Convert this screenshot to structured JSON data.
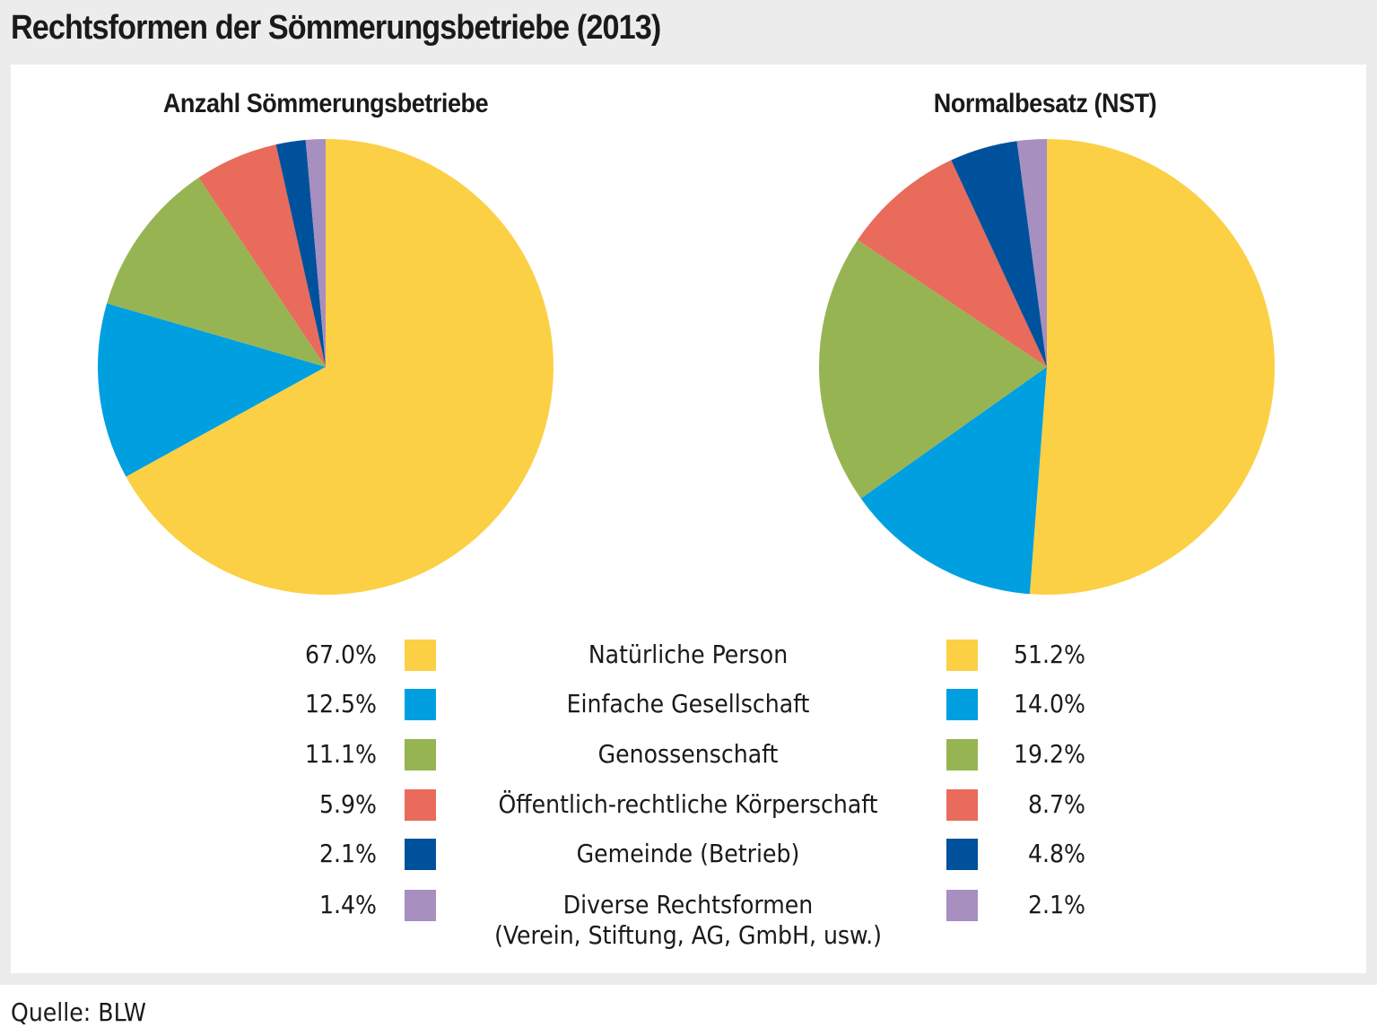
{
  "title": "Rechtsformen der Sömmerungsbetriebe (2013)",
  "source": "Quelle: BLW",
  "chart_data": [
    {
      "type": "pie",
      "title": "Anzahl Sömmerungsbetriebe",
      "categories": [
        "Natürliche Person",
        "Einfache Gesellschaft",
        "Genossenschaft",
        "Öffentlich-rechtliche Körperschaft",
        "Gemeinde (Betrieb)",
        "Diverse Rechtsformen (Verein, Stiftung, AG, GmbH, usw.)"
      ],
      "values": [
        67.0,
        12.5,
        11.1,
        5.9,
        2.1,
        1.4
      ],
      "labels": [
        "67.0%",
        "12.5%",
        "11.1%",
        "5.9%",
        "2.1%",
        "1.4%"
      ],
      "start": "12 o'clock",
      "direction": "clockwise"
    },
    {
      "type": "pie",
      "title": "Normalbesatz (NST)",
      "categories": [
        "Natürliche Person",
        "Einfache Gesellschaft",
        "Genossenschaft",
        "Öffentlich-rechtliche Körperschaft",
        "Gemeinde (Betrieb)",
        "Diverse Rechtsformen (Verein, Stiftung, AG, GmbH, usw.)"
      ],
      "values": [
        51.2,
        14.0,
        19.2,
        8.7,
        4.8,
        2.1
      ],
      "labels": [
        "51.2%",
        "14.0%",
        "19.2%",
        "8.7%",
        "4.8%",
        "2.1%"
      ],
      "start": "12 o'clock",
      "direction": "clockwise"
    }
  ],
  "legend": {
    "items": [
      {
        "label": "Natürliche Person",
        "label2": "",
        "color": "#fcd045",
        "left_pct": "67.0%",
        "right_pct": "51.2%"
      },
      {
        "label": "Einfache Gesellschaft",
        "label2": "",
        "color": "#009fe0",
        "left_pct": "12.5%",
        "right_pct": "14.0%"
      },
      {
        "label": "Genossenschaft",
        "label2": "",
        "color": "#97b453",
        "left_pct": "11.1%",
        "right_pct": "19.2%"
      },
      {
        "label": "Öffentlich-rechtliche Körperschaft",
        "label2": "",
        "color": "#e96b5b",
        "left_pct": "5.9%",
        "right_pct": "8.7%"
      },
      {
        "label": "Gemeinde (Betrieb)",
        "label2": "",
        "color": "#00519b",
        "left_pct": "2.1%",
        "right_pct": "4.8%"
      },
      {
        "label": "Diverse Rechtsformen",
        "label2": "(Verein, Stiftung, AG, GmbH, usw.)",
        "color": "#a78fc0",
        "left_pct": "1.4%",
        "right_pct": "2.1%"
      }
    ]
  }
}
